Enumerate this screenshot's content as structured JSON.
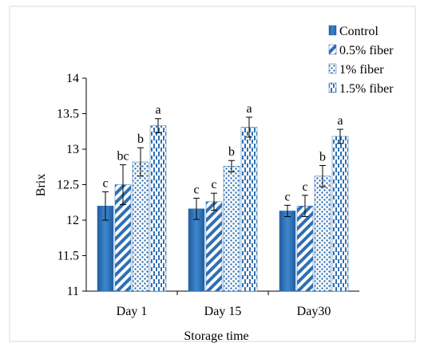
{
  "chart_data": {
    "type": "bar",
    "title": "",
    "xlabel": "Storage time",
    "ylabel": "Brix",
    "categories": [
      "Day 1",
      "Day 15",
      "Day30"
    ],
    "ylim": [
      11,
      14
    ],
    "yticks": [
      "11",
      "11.5",
      "12",
      "12.5",
      "13",
      "13.5",
      "14"
    ],
    "grid": false,
    "legend_position": "top-right",
    "series": [
      {
        "name": "Control",
        "pattern": "solid",
        "color": "#2f6fb3",
        "values": [
          12.2,
          12.16,
          12.13
        ],
        "errors": [
          0.2,
          0.15,
          0.08
        ],
        "labels": [
          "c",
          "c",
          "c"
        ]
      },
      {
        "name": "0.5% fiber",
        "pattern": "wide-diagonal",
        "color": "#2f6fb3",
        "values": [
          12.5,
          12.26,
          12.2
        ],
        "errors": [
          0.28,
          0.12,
          0.15
        ],
        "labels": [
          "bc",
          "c",
          "c"
        ]
      },
      {
        "name": "1% fiber",
        "pattern": "dots",
        "color": "#2f6fb3",
        "values": [
          12.82,
          12.76,
          12.62
        ],
        "errors": [
          0.2,
          0.08,
          0.15
        ],
        "labels": [
          "b",
          "b",
          "b"
        ]
      },
      {
        "name": "1.5% fiber",
        "pattern": "dashed-vertical",
        "color": "#2f6fb3",
        "values": [
          13.33,
          13.31,
          13.18
        ],
        "errors": [
          0.1,
          0.14,
          0.1
        ],
        "labels": [
          "a",
          "a",
          "a"
        ]
      }
    ]
  }
}
